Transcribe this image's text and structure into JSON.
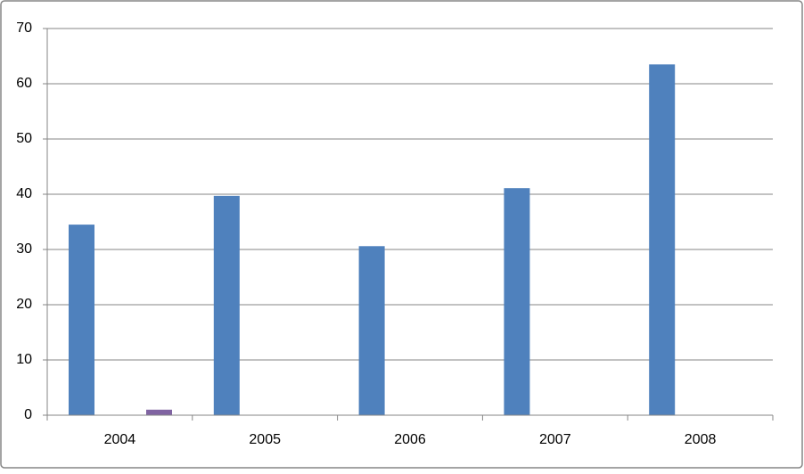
{
  "chart_data": {
    "type": "bar",
    "categories": [
      "2004",
      "2005",
      "2006",
      "2007",
      "2008"
    ],
    "series": [
      {
        "color": "#4f81bd",
        "values": [
          34.5,
          39.7,
          30.6,
          41.1,
          63.5
        ]
      },
      {
        "color": "#8064a2",
        "values": [
          1,
          null,
          null,
          null,
          null
        ]
      }
    ],
    "ylim": [
      0,
      70
    ],
    "yticks": [
      0,
      10,
      20,
      30,
      40,
      50,
      60,
      70
    ],
    "grid": true
  }
}
